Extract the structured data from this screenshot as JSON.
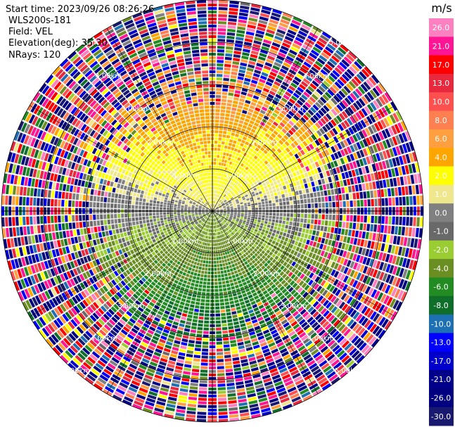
{
  "header": {
    "start_time": "Start time: 2023/09/26 08:26:26",
    "instrument": "WLS200s-181",
    "field": "Field: VEL",
    "elevation": "Elevation(deg): 35.30",
    "nrays": "NRays: 120"
  },
  "colorbar": {
    "unit": "m/s",
    "ticks": [
      "26.0",
      "21.0",
      "17.0",
      "13.0",
      "10.0",
      "8.0",
      "6.0",
      "4.0",
      "2.0",
      "1.0",
      "0.0",
      "-1.0",
      "-2.0",
      "-4.0",
      "-6.0",
      "-8.0",
      "-10.0",
      "-13.0",
      "-17.0",
      "-21.0",
      "-26.0",
      "-30.0"
    ],
    "colors": [
      "#ff80c0",
      "#ff1493",
      "#ff0000",
      "#e8283c",
      "#ff5050",
      "#ff7f50",
      "#ff9f40",
      "#ffa500",
      "#ffff00",
      "#f0e68c",
      "#808080",
      "#696969",
      "#9acd32",
      "#6b8e23",
      "#228b22",
      "#0f6e2a",
      "#1e70b4",
      "#0000ff",
      "#0000cd",
      "#00008b",
      "#000080",
      "#191970"
    ]
  },
  "chart_data": {
    "type": "heatmap",
    "subtype": "PPI polar radial velocity",
    "field": "VEL",
    "units": "m/s",
    "color_levels": [
      26.0,
      21.0,
      17.0,
      13.0,
      10.0,
      8.0,
      6.0,
      4.0,
      2.0,
      1.0,
      0.0,
      -1.0,
      -2.0,
      -4.0,
      -6.0,
      -8.0,
      -10.0,
      -13.0,
      -17.0,
      -21.0,
      -26.0,
      -30.0
    ],
    "range_rings_km": [
      1.0,
      2.0,
      3.0,
      4.0,
      5.0
    ],
    "ring_labels": [
      "1.00km",
      "2.00km",
      "3.00km",
      "4.00km",
      "5.00km"
    ],
    "max_range_km": 5.0,
    "nrays": 120,
    "velocity_pattern": {
      "north_near": "positive 1 to 8 m/s",
      "south_near": "negative -1 to -8 m/s",
      "far_range": "noise, full color range"
    }
  }
}
